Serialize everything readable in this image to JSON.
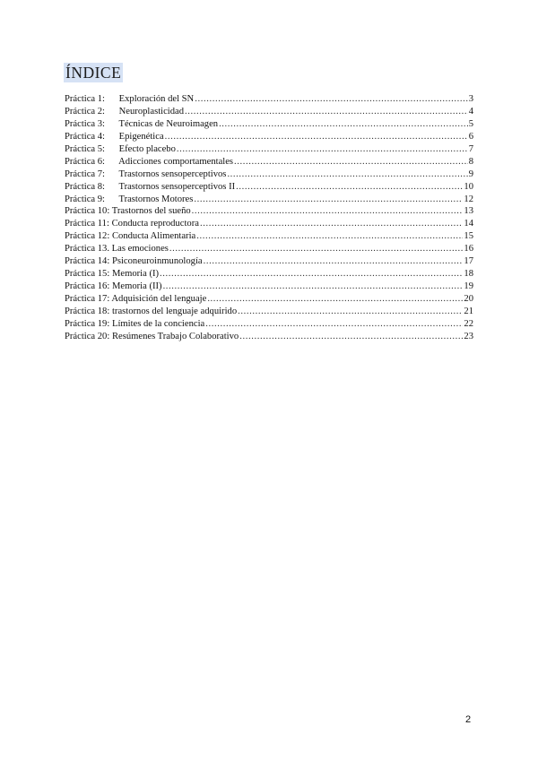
{
  "document": {
    "title": "ÍNDICE",
    "entries": [
      {
        "prefix": "Práctica 1:",
        "title": "Exploración del SN",
        "page": "3"
      },
      {
        "prefix": "Práctica 2:",
        "title": "Neuroplasticidad",
        "page": "4"
      },
      {
        "prefix": "Práctica 3:",
        "title": "Técnicas de Neuroimagen",
        "page": "5"
      },
      {
        "prefix": "Práctica 4:",
        "title": "Epigenética",
        "page": "6"
      },
      {
        "prefix": "Práctica 5:",
        "title": "Efecto placebo",
        "page": "7"
      },
      {
        "prefix": "Práctica 6:",
        "title": "Adicciones comportamentales",
        "page": "8"
      },
      {
        "prefix": "Práctica 7:",
        "title": "Trastornos sensoperceptivos",
        "page": "9"
      },
      {
        "prefix": "Práctica 8:",
        "title": "Trastornos sensoperceptivos II",
        "page": "10"
      },
      {
        "prefix": "Práctica 9:",
        "title": "Trastornos Motores",
        "page": "12"
      },
      {
        "prefix": "Práctica 10:",
        "title": "Trastornos del sueño",
        "page": "13"
      },
      {
        "prefix": "Práctica 11:",
        "title": "Conducta reproductora",
        "page": "14"
      },
      {
        "prefix": "Práctica 12:",
        "title": "Conducta Alimentaria",
        "page": "15"
      },
      {
        "prefix": "Práctica 13.",
        "title": "Las emociones",
        "page": "16"
      },
      {
        "prefix": "Práctica 14:",
        "title": "Psiconeuroinmunología",
        "page": "17"
      },
      {
        "prefix": "Práctica 15:",
        "title": "Memoria (I)",
        "page": "18"
      },
      {
        "prefix": "Práctica 16:",
        "title": "Memoria (II)",
        "page": "19"
      },
      {
        "prefix": "Práctica 17:",
        "title": "Adquisición del lenguaje",
        "page": "20"
      },
      {
        "prefix": "Práctica 18:",
        "title": "trastornos del lenguaje adquirido",
        "page": "21"
      },
      {
        "prefix": "Práctica 19:",
        "title": "Límites de la conciencia",
        "page": "22"
      },
      {
        "prefix": "Práctica 20:",
        "title": "Resúmenes Trabajo Colaborativo",
        "page": "23"
      }
    ],
    "page_number": "2",
    "highlight_color": "#d6e2f5"
  }
}
